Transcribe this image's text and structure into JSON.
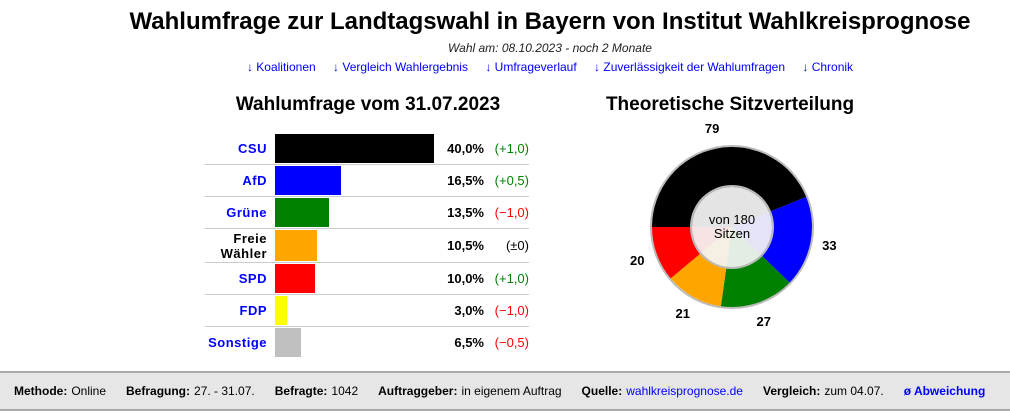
{
  "title": "Wahlumfrage zur Landtagswahl in Bayern von Institut Wahlkreisprognose",
  "subtitle": "Wahl am: 08.10.2023 - noch 2 Monate",
  "nav": [
    "↓ Koalitionen",
    "↓ Vergleich Wahlergebnis",
    "↓ Umfrageverlauf",
    "↓ Zuverlässigkeit der Wahlumfragen",
    "↓ Chronik"
  ],
  "poll_heading": "Wahlumfrage vom 31.07.2023",
  "seats_heading": "Theoretische Sitzverteilung",
  "parties": [
    {
      "name": "CSU",
      "value": 40.0,
      "pct": "40,0%",
      "change": "(+1,0)",
      "color": "#000000",
      "change_color": "#008000",
      "link": true
    },
    {
      "name": "AfD",
      "value": 16.5,
      "pct": "16,5%",
      "change": "(+0,5)",
      "color": "#0000ff",
      "change_color": "#008000",
      "link": true
    },
    {
      "name": "Grüne",
      "value": 13.5,
      "pct": "13,5%",
      "change": "(−1,0)",
      "color": "#008000",
      "change_color": "#ff0000",
      "link": true
    },
    {
      "name": "Freie Wähler",
      "value": 10.5,
      "pct": "10,5%",
      "change": "(±0)",
      "color": "#ffa500",
      "change_color": "#000000",
      "link": false
    },
    {
      "name": "SPD",
      "value": 10.0,
      "pct": "10,0%",
      "change": "(+1,0)",
      "color": "#ff0000",
      "change_color": "#008000",
      "link": true
    },
    {
      "name": "FDP",
      "value": 3.0,
      "pct": "3,0%",
      "change": "(−1,0)",
      "color": "#ffff00",
      "change_color": "#ff0000",
      "link": true
    },
    {
      "name": "Sonstige",
      "value": 6.5,
      "pct": "6,5%",
      "change": "(−0,5)",
      "color": "#c0c0c0",
      "change_color": "#ff0000",
      "link": true
    }
  ],
  "seats": {
    "total_text": [
      "von 180",
      "Sitzen"
    ],
    "total": 180,
    "segments": [
      {
        "party": "CSU",
        "seats": 79,
        "color": "#000000"
      },
      {
        "party": "AfD",
        "seats": 33,
        "color": "#0000ff"
      },
      {
        "party": "Grüne",
        "seats": 27,
        "color": "#008000"
      },
      {
        "party": "Freie Wähler",
        "seats": 21,
        "color": "#ffa500"
      },
      {
        "party": "SPD",
        "seats": 20,
        "color": "#ff0000"
      }
    ]
  },
  "footer": {
    "methode_label": "Methode:",
    "methode": "Online",
    "befragung_label": "Befragung:",
    "befragung": "27. - 31.07.",
    "befragte_label": "Befragte:",
    "befragte": "1042",
    "auftrag_label": "Auftraggeber:",
    "auftrag": "in eigenem Auftrag",
    "quelle_label": "Quelle:",
    "quelle": "wahlkreisprognose.de",
    "vergleich_label": "Vergleich:",
    "vergleich": "zum 04.07.",
    "abweichung": "ø Abweichung"
  }
}
